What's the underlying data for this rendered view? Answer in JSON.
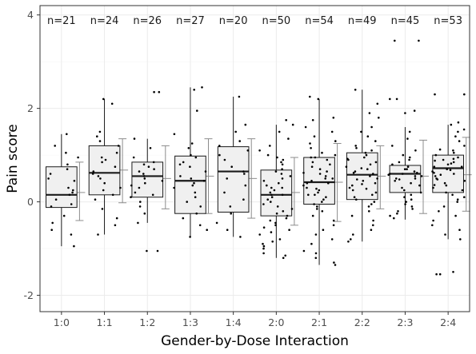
{
  "chart_data": {
    "type": "boxplot",
    "xlabel": "Gender-by-Dose Interaction",
    "ylabel": "Pain score",
    "ylim": [
      -2.35,
      4.2
    ],
    "yticks": [
      -2,
      0,
      2,
      4
    ],
    "grid": true,
    "colors": {
      "box_fill": "#f0f0f0",
      "box_line": "#1a1a1a",
      "point": "#000000",
      "errorbar": "#8c8c8c",
      "grid_major": "#ebebeb",
      "grid_minor": "#f5f5f5"
    },
    "categories": [
      "1:0",
      "1:1",
      "1:2",
      "1:3",
      "1:4",
      "2:0",
      "2:1",
      "2:2",
      "2:3",
      "2:4"
    ],
    "n_labels": [
      "n=21",
      "n=24",
      "n=26",
      "n=27",
      "n=20",
      "n=50",
      "n=54",
      "n=49",
      "n=45",
      "n=53"
    ],
    "boxes": [
      {
        "q1": -0.12,
        "median": 0.15,
        "q3": 0.75,
        "whisker_low": -0.95,
        "whisker_high": 1.45,
        "mean": 0.2,
        "err_low": -0.4,
        "err_high": 0.85
      },
      {
        "q1": 0.15,
        "median": 0.62,
        "q3": 1.2,
        "whisker_low": -0.7,
        "whisker_high": 2.2,
        "mean": 0.68,
        "err_low": -0.02,
        "err_high": 1.35
      },
      {
        "q1": 0.1,
        "median": 0.55,
        "q3": 0.85,
        "whisker_low": -0.45,
        "whisker_high": 1.35,
        "mean": 0.5,
        "err_low": -0.15,
        "err_high": 1.2
      },
      {
        "q1": -0.25,
        "median": 0.45,
        "q3": 0.98,
        "whisker_low": -0.75,
        "whisker_high": 2.45,
        "mean": 0.55,
        "err_low": -0.25,
        "err_high": 1.35
      },
      {
        "q1": -0.22,
        "median": 0.65,
        "q3": 1.18,
        "whisker_low": -0.75,
        "whisker_high": 2.25,
        "mean": 0.5,
        "err_low": -0.35,
        "err_high": 1.35
      },
      {
        "q1": -0.3,
        "median": 0.15,
        "q3": 0.68,
        "whisker_low": -1.2,
        "whisker_high": 1.65,
        "mean": 0.2,
        "err_low": -0.5,
        "err_high": 0.95
      },
      {
        "q1": -0.05,
        "median": 0.42,
        "q3": 0.95,
        "whisker_low": -1.35,
        "whisker_high": 2.2,
        "mean": 0.42,
        "err_low": -0.42,
        "err_high": 1.25
      },
      {
        "q1": 0.05,
        "median": 0.58,
        "q3": 1.05,
        "whisker_low": -0.85,
        "whisker_high": 2.4,
        "mean": 0.55,
        "err_low": -0.15,
        "err_high": 1.2
      },
      {
        "q1": 0.2,
        "median": 0.6,
        "q3": 0.78,
        "whisker_low": -0.38,
        "whisker_high": 1.6,
        "mean": 0.55,
        "err_low": -0.25,
        "err_high": 1.32
      },
      {
        "q1": 0.2,
        "median": 0.72,
        "q3": 1.0,
        "whisker_low": -0.8,
        "whisker_high": 1.65,
        "mean": 0.58,
        "err_low": -0.2,
        "err_high": 1.38
      }
    ],
    "points": [
      [
        1.45,
        1.2,
        1.05,
        0.95,
        0.8,
        0.7,
        0.6,
        0.45,
        0.3,
        0.2,
        0.15,
        0.05,
        -0.05,
        -0.1,
        -0.3,
        -0.45,
        -0.6,
        -0.7,
        -0.95,
        0.25,
        0.5
      ],
      [
        2.2,
        2.1,
        1.5,
        1.4,
        1.3,
        1.2,
        1.05,
        0.95,
        0.85,
        0.75,
        0.65,
        0.6,
        0.55,
        0.5,
        0.4,
        0.3,
        0.25,
        0.15,
        0.05,
        -0.15,
        -0.35,
        -0.5,
        -0.7,
        0.9
      ],
      [
        2.35,
        2.35,
        1.35,
        1.15,
        0.95,
        0.85,
        0.8,
        0.7,
        0.65,
        0.6,
        0.55,
        0.5,
        0.45,
        0.4,
        0.35,
        0.3,
        0.2,
        0.15,
        0.1,
        0.0,
        -0.1,
        -0.25,
        -0.45,
        -1.05,
        -1.05,
        0.75
      ],
      [
        2.45,
        2.4,
        1.95,
        1.45,
        1.25,
        1.15,
        1.0,
        0.95,
        0.85,
        0.75,
        0.65,
        0.55,
        0.5,
        0.45,
        0.4,
        0.3,
        0.2,
        0.1,
        0.0,
        -0.1,
        -0.25,
        -0.35,
        -0.5,
        -0.6,
        -0.75,
        0.8,
        0.35
      ],
      [
        2.25,
        1.65,
        1.5,
        1.3,
        1.2,
        1.1,
        1.0,
        0.9,
        0.75,
        0.65,
        0.5,
        0.35,
        0.2,
        0.05,
        -0.1,
        -0.25,
        -0.45,
        -0.6,
        -0.75,
        0.6
      ],
      [
        1.75,
        1.65,
        1.5,
        1.35,
        1.2,
        1.1,
        1.0,
        0.95,
        0.85,
        0.8,
        0.7,
        0.65,
        0.6,
        0.55,
        0.5,
        0.45,
        0.4,
        0.35,
        0.3,
        0.25,
        0.2,
        0.15,
        0.15,
        0.1,
        0.05,
        0.0,
        -0.05,
        -0.1,
        -0.15,
        -0.2,
        -0.25,
        -0.3,
        -0.35,
        -0.4,
        -0.45,
        -0.5,
        -0.55,
        -0.6,
        -0.65,
        -0.7,
        -0.8,
        -0.85,
        -0.9,
        -0.95,
        -1.0,
        -1.1,
        -1.15,
        -1.2,
        0.9,
        0.3
      ],
      [
        2.25,
        2.2,
        1.8,
        1.75,
        1.6,
        1.5,
        1.4,
        1.3,
        1.25,
        1.15,
        1.05,
        1.0,
        0.95,
        0.9,
        0.85,
        0.8,
        0.75,
        0.7,
        0.65,
        0.6,
        0.55,
        0.5,
        0.45,
        0.4,
        0.4,
        0.35,
        0.3,
        0.25,
        0.2,
        0.15,
        0.1,
        0.05,
        0.0,
        -0.05,
        -0.1,
        -0.15,
        -0.2,
        -0.3,
        -0.4,
        -0.5,
        -0.6,
        -0.7,
        -0.8,
        -0.9,
        -1.05,
        -1.1,
        -1.2,
        -1.3,
        -1.35,
        0.62,
        0.28,
        0.95,
        0.15,
        0.5
      ],
      [
        2.4,
        2.1,
        1.9,
        1.8,
        1.6,
        1.5,
        1.4,
        1.3,
        1.2,
        1.1,
        1.05,
        1.0,
        0.95,
        0.9,
        0.85,
        0.8,
        0.75,
        0.7,
        0.65,
        0.6,
        0.55,
        0.5,
        0.45,
        0.4,
        0.35,
        0.3,
        0.25,
        0.2,
        0.15,
        0.1,
        0.05,
        0.0,
        -0.05,
        -0.1,
        -0.2,
        -0.3,
        -0.4,
        -0.5,
        -0.6,
        -0.7,
        -0.8,
        -0.85,
        0.62,
        0.48,
        0.72,
        0.38,
        0.92,
        1.15,
        0.28
      ],
      [
        3.45,
        3.45,
        2.2,
        2.2,
        1.95,
        1.9,
        1.5,
        1.35,
        1.2,
        1.1,
        1.0,
        0.95,
        0.9,
        0.85,
        0.8,
        0.75,
        0.7,
        0.65,
        0.6,
        0.6,
        0.55,
        0.55,
        0.5,
        0.5,
        0.45,
        0.4,
        0.35,
        0.3,
        0.25,
        0.2,
        0.15,
        0.1,
        0.05,
        0.0,
        -0.05,
        -0.1,
        -0.15,
        -0.2,
        -0.25,
        -0.3,
        -0.35,
        0.62,
        0.7,
        0.48,
        0.58
      ],
      [
        2.3,
        2.3,
        1.7,
        1.65,
        1.55,
        1.5,
        1.4,
        1.3,
        1.2,
        1.1,
        1.05,
        1.0,
        0.95,
        0.9,
        0.85,
        0.8,
        0.75,
        0.7,
        0.65,
        0.6,
        0.55,
        0.5,
        0.45,
        0.4,
        0.35,
        0.3,
        0.25,
        0.2,
        0.15,
        0.1,
        0.05,
        0.0,
        -0.1,
        -0.2,
        -0.3,
        -0.4,
        -0.5,
        -0.6,
        -0.7,
        -0.8,
        -1.5,
        -1.55,
        -1.55,
        0.75,
        0.82,
        0.68,
        0.92,
        0.62,
        0.58,
        1.12,
        0.36,
        0.48,
        0.88
      ]
    ]
  }
}
